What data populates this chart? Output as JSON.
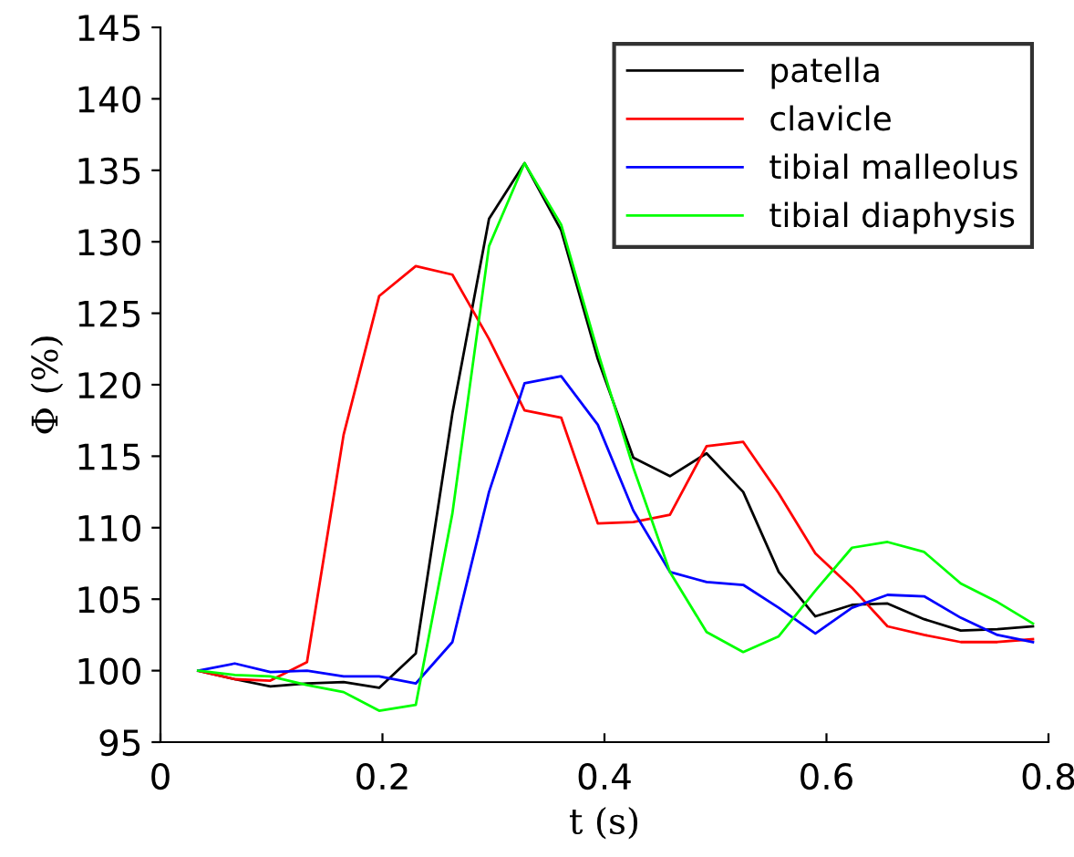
{
  "chart_data": {
    "type": "line",
    "xlabel": "t (s)",
    "ylabel": "Φ (%)",
    "x": [
      0.034,
      0.067,
      0.099,
      0.132,
      0.165,
      0.197,
      0.23,
      0.263,
      0.296,
      0.328,
      0.361,
      0.394,
      0.426,
      0.459,
      0.492,
      0.525,
      0.557,
      0.59,
      0.623,
      0.655,
      0.688,
      0.721,
      0.754,
      0.786
    ],
    "series": [
      {
        "name": "patella",
        "color": "#000000",
        "values": [
          100,
          99.4,
          98.9,
          99.1,
          99.2,
          98.8,
          101.2,
          118,
          131.6,
          135.5,
          130.8,
          121.8,
          114.9,
          113.6,
          115.2,
          112.5,
          106.9,
          103.8,
          104.6,
          104.7,
          103.6,
          102.8,
          102.9,
          103.1
        ]
      },
      {
        "name": "clavicle",
        "color": "#ff0000",
        "values": [
          100,
          99.4,
          99.3,
          100.6,
          116.5,
          126.2,
          128.3,
          127.7,
          123.2,
          118.2,
          117.7,
          110.3,
          110.4,
          110.9,
          115.7,
          116.0,
          112.4,
          108.2,
          105.8,
          103.1,
          102.5,
          102.0,
          102.0,
          102.2
        ]
      },
      {
        "name": "tibial malleolus",
        "color": "#0000ff",
        "values": [
          100,
          100.5,
          99.9,
          100.0,
          99.6,
          99.6,
          99.1,
          102.0,
          112.5,
          120.1,
          120.6,
          117.2,
          111.2,
          106.9,
          106.2,
          106.0,
          104.4,
          102.6,
          104.4,
          105.3,
          105.2,
          103.7,
          102.5,
          102.0
        ]
      },
      {
        "name": "tibial diaphysis",
        "color": "#00ff00",
        "values": [
          100,
          99.7,
          99.6,
          99.0,
          98.5,
          97.2,
          97.6,
          111,
          129.7,
          135.5,
          131.2,
          122.3,
          114.2,
          106.9,
          102.7,
          101.3,
          102.4,
          105.6,
          108.6,
          109.0,
          108.3,
          106.1,
          104.8,
          103.3
        ]
      }
    ],
    "xlim": [
      0,
      0.8
    ],
    "xticks": [
      0,
      0.2,
      0.4,
      0.6,
      0.8
    ],
    "ylim": [
      95,
      145
    ],
    "yticks": [
      95,
      100,
      105,
      110,
      115,
      120,
      125,
      130,
      135,
      140,
      145
    ],
    "grid": false,
    "legend": "top right",
    "line_style": "solid"
  }
}
